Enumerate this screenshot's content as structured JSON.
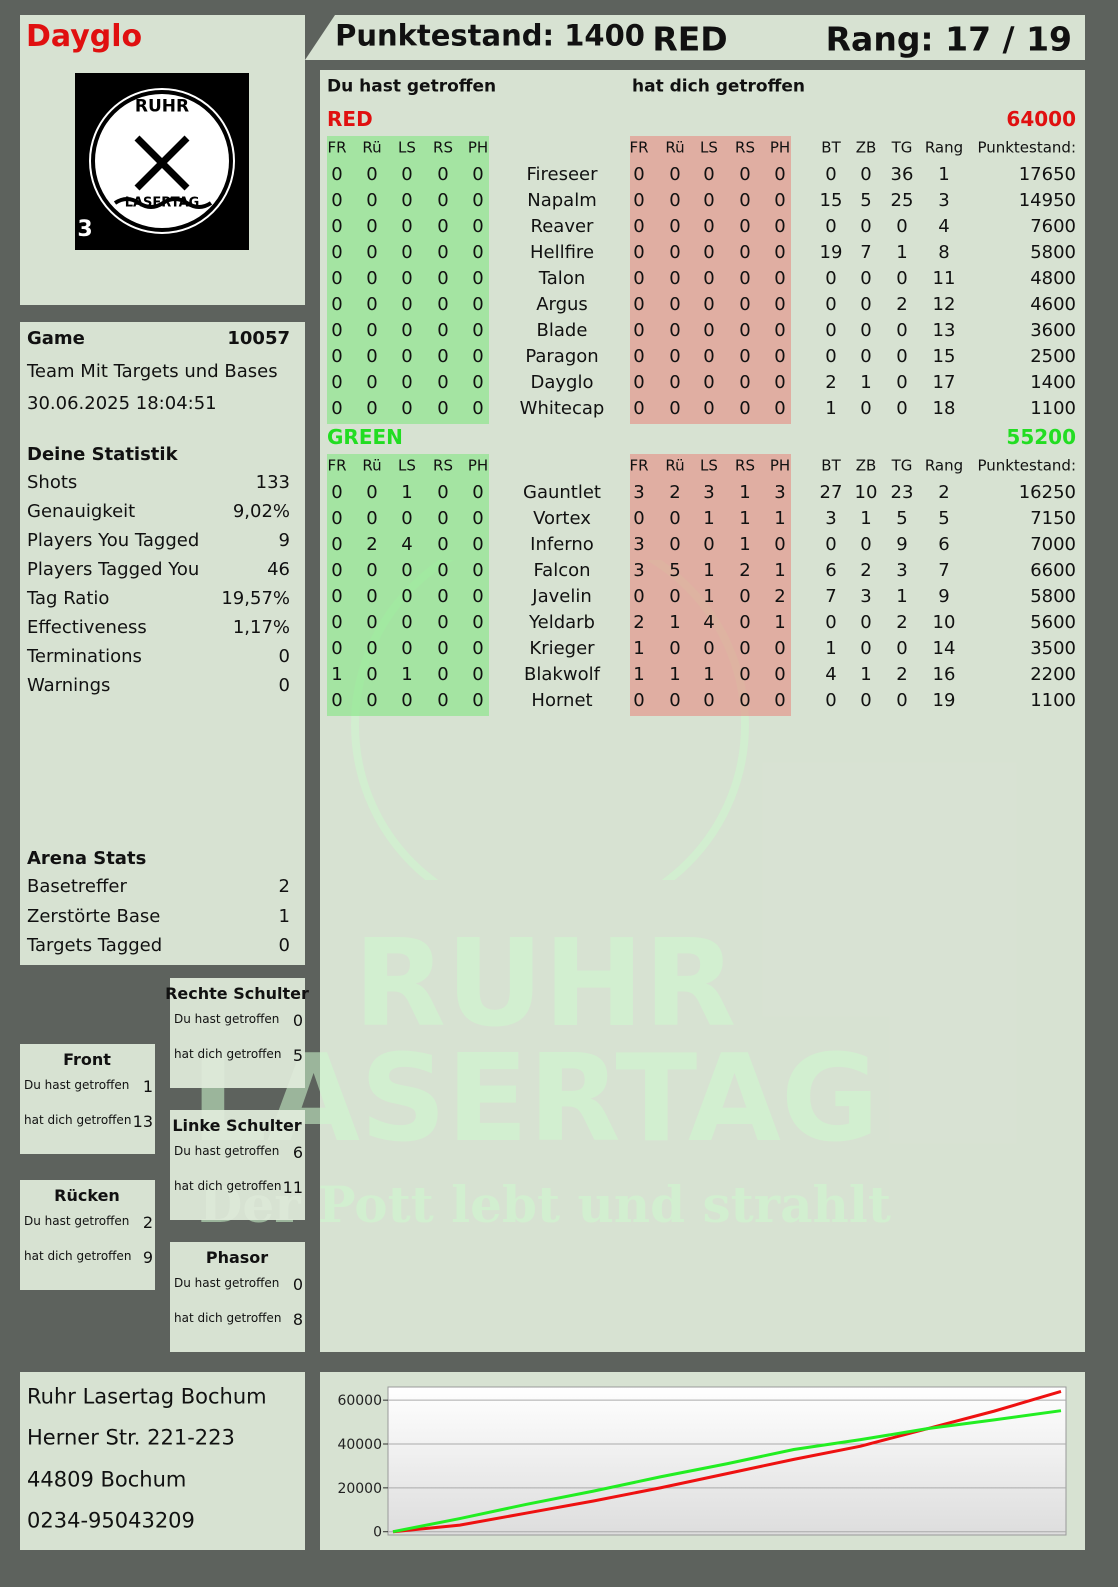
{
  "header": {
    "player": "Dayglo",
    "score": "Punktestand: 1400",
    "team": "RED",
    "rank": "Rang: 17 / 19"
  },
  "logo": {
    "top": "RUHR",
    "bottom": "LASERTAG",
    "number": "3"
  },
  "watermark": {
    "line1": "RUHR",
    "line2": "LASERTAG",
    "slogan": "Der Pott lebt und strahlt"
  },
  "game": {
    "label": "Game",
    "number": 10057,
    "mode": "Team Mit Targets und Bases",
    "date": "30.06.2025 18:04:51"
  },
  "stats": {
    "title": "Deine Statistik",
    "items": [
      [
        "Shots",
        133
      ],
      [
        "Genauigkeit",
        "9,02%"
      ],
      [
        "Players You Tagged",
        9
      ],
      [
        "Players Tagged You",
        46
      ],
      [
        "Tag Ratio",
        "19,57%"
      ],
      [
        "Effectiveness",
        "1,17%"
      ],
      [
        "Terminations",
        0
      ],
      [
        "Warnings",
        0
      ]
    ]
  },
  "arena": {
    "title": "Arena Stats",
    "items": [
      [
        "Basetreffer",
        2
      ],
      [
        "Zerstörte Base",
        1
      ],
      [
        "Targets Tagged",
        0
      ]
    ]
  },
  "zones": [
    {
      "title": "Rechte Schulter",
      "rows": [
        [
          "Du hast getroffen",
          0
        ],
        [
          "hat dich getroffen",
          5
        ]
      ]
    },
    {
      "title": "Front",
      "rows": [
        [
          "Du hast getroffen",
          1
        ],
        [
          "hat dich getroffen",
          13
        ]
      ]
    },
    {
      "title": "Linke Schulter",
      "rows": [
        [
          "Du hast getroffen",
          6
        ],
        [
          "hat dich getroffen",
          11
        ]
      ]
    },
    {
      "title": "Rücken",
      "rows": [
        [
          "Du hast getroffen",
          2
        ],
        [
          "hat dich getroffen",
          9
        ]
      ]
    },
    {
      "title": "Phasor",
      "rows": [
        [
          "Du hast getroffen",
          0
        ],
        [
          "hat dich getroffen",
          8
        ]
      ]
    }
  ],
  "table": {
    "hit_by_you": "Du hast getroffen",
    "hit_you": "hat dich getroffen",
    "teams": [
      {
        "name": "RED",
        "score": 64000,
        "columns": [
          "FR",
          "Rü",
          "LS",
          "RS",
          "PH",
          "FR",
          "Rü",
          "LS",
          "RS",
          "PH",
          "BT",
          "ZB",
          "TG",
          "Rang",
          "Punktestand:"
        ],
        "rows": [
          [
            "Fireseer",
            0,
            0,
            0,
            0,
            0,
            0,
            0,
            0,
            0,
            0,
            0,
            0,
            36,
            1,
            17650
          ],
          [
            "Napalm",
            0,
            0,
            0,
            0,
            0,
            0,
            0,
            0,
            0,
            0,
            15,
            5,
            25,
            3,
            14950
          ],
          [
            "Reaver",
            0,
            0,
            0,
            0,
            0,
            0,
            0,
            0,
            0,
            0,
            0,
            0,
            0,
            4,
            7600
          ],
          [
            "Hellfire",
            0,
            0,
            0,
            0,
            0,
            0,
            0,
            0,
            0,
            0,
            19,
            7,
            1,
            8,
            5800
          ],
          [
            "Talon",
            0,
            0,
            0,
            0,
            0,
            0,
            0,
            0,
            0,
            0,
            0,
            0,
            0,
            11,
            4800
          ],
          [
            "Argus",
            0,
            0,
            0,
            0,
            0,
            0,
            0,
            0,
            0,
            0,
            0,
            0,
            2,
            12,
            4600
          ],
          [
            "Blade",
            0,
            0,
            0,
            0,
            0,
            0,
            0,
            0,
            0,
            0,
            0,
            0,
            0,
            13,
            3600
          ],
          [
            "Paragon",
            0,
            0,
            0,
            0,
            0,
            0,
            0,
            0,
            0,
            0,
            0,
            0,
            0,
            15,
            2500
          ],
          [
            "Dayglo",
            0,
            0,
            0,
            0,
            0,
            0,
            0,
            0,
            0,
            0,
            2,
            1,
            0,
            17,
            1400
          ],
          [
            "Whitecap",
            0,
            0,
            0,
            0,
            0,
            0,
            0,
            0,
            0,
            0,
            1,
            0,
            0,
            18,
            1100
          ]
        ]
      },
      {
        "name": "GREEN",
        "score": 55200,
        "columns": [
          "FR",
          "Rü",
          "LS",
          "RS",
          "PH",
          "FR",
          "Rü",
          "LS",
          "RS",
          "PH",
          "BT",
          "ZB",
          "TG",
          "Rang",
          "Punktestand:"
        ],
        "rows": [
          [
            "Gauntlet",
            0,
            0,
            1,
            0,
            0,
            3,
            2,
            3,
            1,
            3,
            27,
            10,
            23,
            2,
            16250
          ],
          [
            "Vortex",
            0,
            0,
            0,
            0,
            0,
            0,
            0,
            1,
            1,
            1,
            3,
            1,
            5,
            5,
            7150
          ],
          [
            "Inferno",
            0,
            2,
            4,
            0,
            0,
            3,
            0,
            0,
            1,
            0,
            0,
            0,
            9,
            6,
            7000
          ],
          [
            "Falcon",
            0,
            0,
            0,
            0,
            0,
            3,
            5,
            1,
            2,
            1,
            6,
            2,
            3,
            7,
            6600
          ],
          [
            "Javelin",
            0,
            0,
            0,
            0,
            0,
            0,
            0,
            1,
            0,
            2,
            7,
            3,
            1,
            9,
            5800
          ],
          [
            "Yeldarb",
            0,
            0,
            0,
            0,
            0,
            2,
            1,
            4,
            0,
            1,
            0,
            0,
            2,
            10,
            5600
          ],
          [
            "Krieger",
            0,
            0,
            0,
            0,
            0,
            1,
            0,
            0,
            0,
            0,
            1,
            0,
            0,
            14,
            3500
          ],
          [
            "Blakwolf",
            1,
            0,
            1,
            0,
            0,
            1,
            1,
            1,
            0,
            0,
            4,
            1,
            2,
            16,
            2200
          ],
          [
            "Hornet",
            0,
            0,
            0,
            0,
            0,
            0,
            0,
            0,
            0,
            0,
            0,
            0,
            0,
            19,
            1100
          ]
        ]
      }
    ]
  },
  "address": [
    "Ruhr Lasertag Bochum",
    "Herner Str. 221-223",
    "44809 Bochum",
    "0234-95043209"
  ],
  "chart_data": {
    "type": "line",
    "ylim": [
      -1500,
      66000
    ],
    "yticks": [
      0,
      20000,
      40000,
      60000
    ],
    "grid": true,
    "series": [
      {
        "color": "#ee1111",
        "values": [
          0,
          3000,
          8500,
          14000,
          20000,
          26500,
          33000,
          39000,
          47000,
          55000,
          64000
        ]
      },
      {
        "color": "#22ee22",
        "values": [
          0,
          6000,
          12500,
          18500,
          25000,
          31000,
          37500,
          42000,
          47000,
          51000,
          55200
        ]
      }
    ]
  }
}
